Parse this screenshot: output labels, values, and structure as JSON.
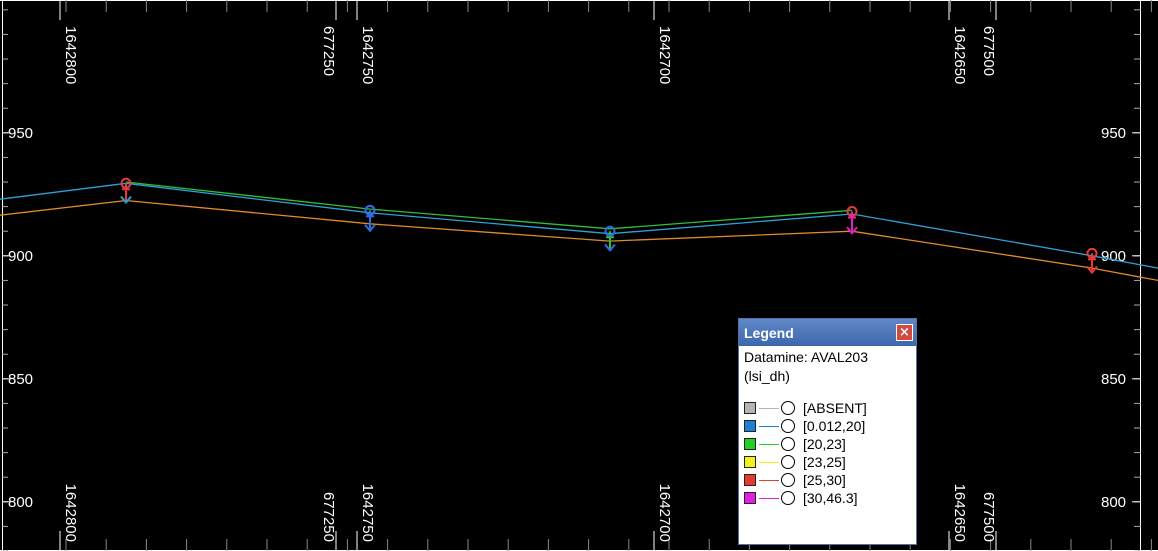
{
  "chart_data": {
    "type": "line",
    "y_axis": {
      "ticks": [
        950,
        900,
        850,
        800
      ],
      "labels": [
        "950",
        "900",
        "850",
        "800"
      ],
      "range": [
        780,
        1004
      ]
    },
    "x_labels_primary": [
      "1642800",
      "1642750",
      "1642700",
      "1642650"
    ],
    "x_labels_secondary": [
      "677250",
      "677500"
    ],
    "series": [
      {
        "color": "#2ea0d8",
        "points": [
          [
            0,
            923
          ],
          [
            126,
            929.5
          ],
          [
            370,
            917.5
          ],
          [
            610,
            909
          ],
          [
            852,
            917
          ],
          [
            1092,
            900
          ],
          [
            1158,
            895
          ]
        ]
      },
      {
        "color": "#2fbf3a",
        "points": [
          [
            126,
            930
          ],
          [
            370,
            919
          ],
          [
            610,
            911
          ],
          [
            852,
            918.5
          ]
        ]
      },
      {
        "color": "#e08a2a",
        "points": [
          [
            0,
            916.5
          ],
          [
            126,
            922.5
          ],
          [
            370,
            913
          ],
          [
            610,
            906
          ],
          [
            852,
            910
          ],
          [
            1092,
            895
          ],
          [
            1158,
            890
          ]
        ]
      }
    ],
    "markers": [
      {
        "x": 126,
        "top": 929.5,
        "bottom": 922.5,
        "circle_color": "#e83a3a",
        "tick_color": "#e83a3a",
        "arrow_color": "#2ea0d8"
      },
      {
        "x": 370,
        "top": 918.5,
        "bottom": 911,
        "circle_color": "#2d6fe0",
        "tick_color": "#2d6fe0",
        "arrow_color": "#2d6fe0"
      },
      {
        "x": 610,
        "top": 910,
        "bottom": 903,
        "circle_color": "#2d6fe0",
        "tick_color": "#2fbf3a",
        "arrow_color": "#2d6fe0"
      },
      {
        "x": 852,
        "top": 918,
        "bottom": 910,
        "circle_color": "#e83a3a",
        "tick_color": "#e020c0",
        "arrow_color": "#e020c0"
      },
      {
        "x": 1092,
        "top": 901,
        "bottom": 894,
        "circle_color": "#e83a3a",
        "tick_color": "#e83a3a",
        "arrow_color": "#e83a3a"
      }
    ]
  },
  "legend": {
    "title": "Legend",
    "close_glyph": "×",
    "heading_line1": "Datamine: AVAL203",
    "heading_line2": "(lsi_dh)",
    "items": [
      {
        "label": "[ABSENT]",
        "color": "#b4b4b4"
      },
      {
        "label": "[0.012,20]",
        "color": "#1f7fd6"
      },
      {
        "label": "[20,23]",
        "color": "#22d022"
      },
      {
        "label": "[23,25]",
        "color": "#f2f21a"
      },
      {
        "label": "[25,30]",
        "color": "#e43a30"
      },
      {
        "label": "[30,46.3]",
        "color": "#e020e0"
      }
    ]
  }
}
